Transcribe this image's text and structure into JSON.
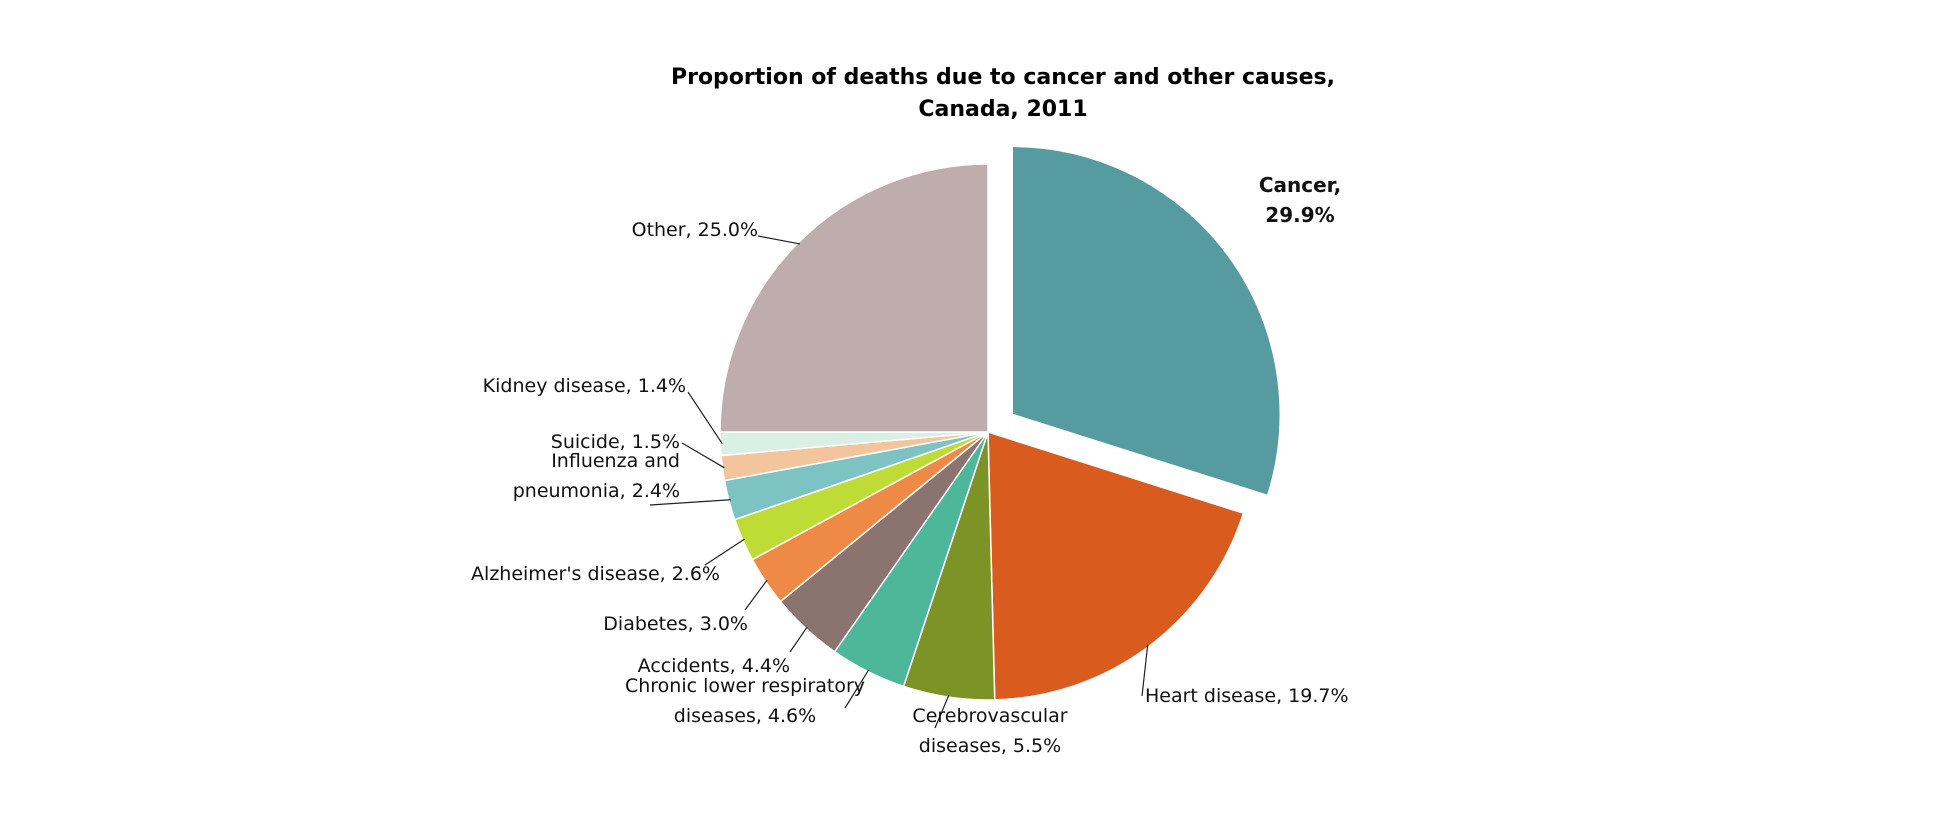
{
  "chart_data": {
    "type": "pie",
    "title": [
      "Proportion of deaths due to cancer and other causes,",
      "Canada, 2011"
    ],
    "slices": [
      {
        "label_lines": [
          "Cancer,",
          "29.9%"
        ],
        "value": 29.9,
        "color": "#559ba0",
        "exploded": true,
        "bold": true
      },
      {
        "label_lines": [
          "Heart disease, 19.7%"
        ],
        "value": 19.7,
        "color": "#d95b1e"
      },
      {
        "label_lines": [
          "Cerebrovascular",
          "diseases, 5.5%"
        ],
        "value": 5.5,
        "color": "#7e9326"
      },
      {
        "label_lines": [
          "Chronic lower respiratory",
          "diseases, 4.6%"
        ],
        "value": 4.6,
        "color": "#4db79a"
      },
      {
        "label_lines": [
          "Accidents, 4.4%"
        ],
        "value": 4.4,
        "color": "#8b7470"
      },
      {
        "label_lines": [
          "Diabetes, 3.0%"
        ],
        "value": 3.0,
        "color": "#ee8a45"
      },
      {
        "label_lines": [
          "Alzheimer's disease, 2.6%"
        ],
        "value": 2.6,
        "color": "#bedb36"
      },
      {
        "label_lines": [
          "Influenza and",
          "pneumonia, 2.4%"
        ],
        "value": 2.4,
        "color": "#7ec3c4"
      },
      {
        "label_lines": [
          "Suicide, 1.5%"
        ],
        "value": 1.5,
        "color": "#f2c59c"
      },
      {
        "label_lines": [
          "Kidney disease, 1.4%"
        ],
        "value": 1.4,
        "color": "#daf0e6"
      },
      {
        "label_lines": [
          "Other, 25.0%"
        ],
        "value": 25.0,
        "color": "#bfadad"
      }
    ]
  }
}
